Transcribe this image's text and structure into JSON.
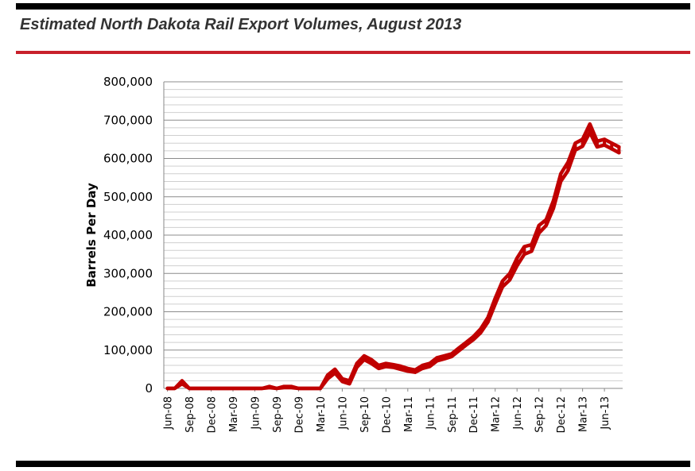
{
  "header": {
    "title": "Estimated North Dakota Rail Export Volumes, August 2013"
  },
  "colors": {
    "series": "#c00000",
    "rule": "#c8202b"
  },
  "chart_data": {
    "type": "line",
    "title": "",
    "xlabel": "",
    "ylabel": "Barrels Per Day",
    "ylim": [
      0,
      800000
    ],
    "yticks": [
      "0",
      "100,000",
      "200,000",
      "300,000",
      "400,000",
      "500,000",
      "600,000",
      "700,000",
      "800,000"
    ],
    "ytick_values": [
      0,
      100000,
      200000,
      300000,
      400000,
      500000,
      600000,
      700000,
      800000
    ],
    "grid": true,
    "x": [
      "Jun-08",
      "Jul-08",
      "Aug-08",
      "Sep-08",
      "Oct-08",
      "Nov-08",
      "Dec-08",
      "Jan-09",
      "Feb-09",
      "Mar-09",
      "Apr-09",
      "May-09",
      "Jun-09",
      "Jul-09",
      "Aug-09",
      "Sep-09",
      "Oct-09",
      "Nov-09",
      "Dec-09",
      "Jan-10",
      "Feb-10",
      "Mar-10",
      "Apr-10",
      "May-10",
      "Jun-10",
      "Jul-10",
      "Aug-10",
      "Sep-10",
      "Oct-10",
      "Nov-10",
      "Dec-10",
      "Jan-11",
      "Feb-11",
      "Mar-11",
      "Apr-11",
      "May-11",
      "Jun-11",
      "Jul-11",
      "Aug-11",
      "Sep-11",
      "Oct-11",
      "Nov-11",
      "Dec-11",
      "Jan-12",
      "Feb-12",
      "Mar-12",
      "Apr-12",
      "May-12",
      "Jun-12",
      "Jul-12",
      "Aug-12",
      "Sep-12",
      "Oct-12",
      "Nov-12",
      "Dec-12",
      "Jan-13",
      "Feb-13",
      "Mar-13",
      "Apr-13",
      "May-13",
      "Jun-13",
      "Jul-13",
      "Aug-13"
    ],
    "xticks": [
      "Jun-08",
      "Sep-08",
      "Dec-08",
      "Mar-09",
      "Jun-09",
      "Sep-09",
      "Dec-09",
      "Mar-10",
      "Jun-10",
      "Sep-10",
      "Dec-10",
      "Mar-11",
      "Jun-11",
      "Sep-11",
      "Dec-11",
      "Mar-12",
      "Jun-12",
      "Sep-12",
      "Dec-12",
      "Mar-13",
      "Jun-13"
    ],
    "series": [
      {
        "values": [
          0,
          0,
          20000,
          0,
          0,
          0,
          0,
          0,
          0,
          0,
          0,
          0,
          0,
          0,
          5000,
          0,
          5000,
          5000,
          0,
          0,
          0,
          0,
          35000,
          50000,
          25000,
          20000,
          65000,
          85000,
          75000,
          60000,
          65000,
          62000,
          58000,
          52000,
          48000,
          60000,
          65000,
          80000,
          85000,
          90000,
          105000,
          120000,
          135000,
          155000,
          185000,
          235000,
          280000,
          300000,
          340000,
          370000,
          375000,
          425000,
          440000,
          490000,
          560000,
          590000,
          640000,
          650000,
          690000,
          645000,
          650000,
          640000,
          630000
        ]
      },
      {
        "values": [
          0,
          0,
          12000,
          0,
          0,
          0,
          0,
          0,
          0,
          0,
          0,
          0,
          0,
          0,
          2000,
          0,
          2000,
          2000,
          0,
          0,
          0,
          0,
          25000,
          40000,
          18000,
          12000,
          55000,
          75000,
          65000,
          52000,
          57000,
          55000,
          50000,
          45000,
          42000,
          52000,
          57000,
          72000,
          77000,
          83000,
          98000,
          113000,
          127000,
          145000,
          173000,
          220000,
          265000,
          283000,
          320000,
          350000,
          358000,
          405000,
          425000,
          470000,
          540000,
          568000,
          622000,
          632000,
          668000,
          630000,
          635000,
          625000,
          615000
        ]
      }
    ]
  }
}
